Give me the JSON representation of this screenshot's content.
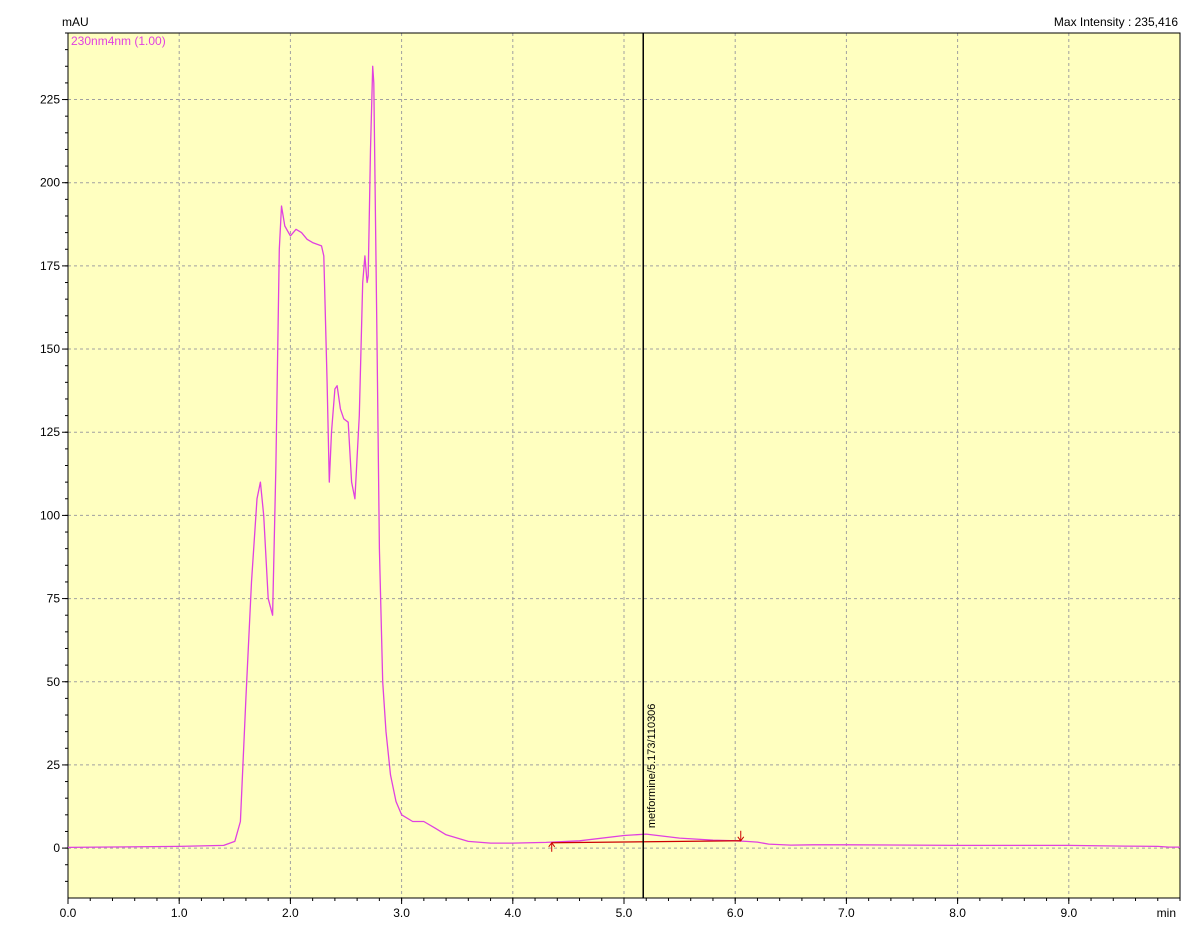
{
  "chart_data": {
    "type": "line",
    "ylabel": "mAU",
    "xlabel": "min",
    "max_intensity_label": "Max Intensity : 235,416",
    "xlim": [
      0,
      10
    ],
    "ylim": [
      -15,
      245
    ],
    "x_ticks": [
      "0.0",
      "1.0",
      "2.0",
      "3.0",
      "4.0",
      "5.0",
      "6.0",
      "7.0",
      "8.0",
      "9.0"
    ],
    "x_tick_values": [
      0,
      1,
      2,
      3,
      4,
      5,
      6,
      7,
      8,
      9
    ],
    "y_ticks": [
      "0",
      "25",
      "50",
      "75",
      "100",
      "125",
      "150",
      "175",
      "200",
      "225"
    ],
    "y_tick_values": [
      0,
      25,
      50,
      75,
      100,
      125,
      150,
      175,
      200,
      225
    ],
    "grid": true,
    "background_color": "#ffffc0",
    "series_color": "#e040e0",
    "marker_color": "#cc0000",
    "series": [
      {
        "name": "230nm4nm (1.00)",
        "x": [
          0.0,
          1.0,
          1.4,
          1.5,
          1.55,
          1.6,
          1.65,
          1.7,
          1.73,
          1.76,
          1.8,
          1.84,
          1.87,
          1.9,
          1.92,
          1.95,
          2.0,
          2.05,
          2.1,
          2.15,
          2.2,
          2.28,
          2.3,
          2.33,
          2.35,
          2.37,
          2.4,
          2.42,
          2.45,
          2.48,
          2.52,
          2.55,
          2.58,
          2.62,
          2.65,
          2.67,
          2.69,
          2.7,
          2.72,
          2.74,
          2.75,
          2.78,
          2.8,
          2.83,
          2.86,
          2.9,
          2.95,
          3.0,
          3.1,
          3.2,
          3.3,
          3.4,
          3.6,
          3.8,
          4.0,
          4.3,
          4.6,
          5.0,
          5.2,
          5.5,
          5.8,
          6.0,
          6.1,
          6.2,
          6.3,
          6.5,
          6.7,
          7.0,
          8.0,
          9.0,
          9.5,
          9.8,
          9.9,
          10.0
        ],
        "y": [
          0.2,
          0.5,
          0.8,
          2,
          8,
          45,
          80,
          105,
          110,
          100,
          75,
          70,
          115,
          180,
          193,
          187,
          184,
          186,
          185,
          183,
          182,
          181,
          178,
          140,
          110,
          125,
          138,
          139,
          132,
          129,
          128,
          110,
          105,
          130,
          170,
          178,
          170,
          172,
          210,
          235,
          230,
          150,
          90,
          50,
          35,
          22,
          14,
          10,
          8,
          8,
          6,
          4,
          2,
          1.5,
          1.5,
          1.7,
          2.2,
          3.8,
          4.2,
          3.0,
          2.4,
          2.2,
          2.0,
          1.8,
          1.2,
          0.9,
          1.0,
          1.0,
          0.8,
          0.8,
          0.6,
          0.5,
          0.3,
          0.3
        ]
      }
    ],
    "baseline": {
      "x": [
        4.35,
        6.05
      ],
      "y": [
        1.6,
        2.2
      ]
    },
    "integration_markers": [
      {
        "x": 4.35,
        "y": 1.6,
        "direction": "up"
      },
      {
        "x": 6.05,
        "y": 2.2,
        "direction": "down"
      }
    ],
    "cursor_x": 5.173,
    "peak_label": "metformine/5.173/110306"
  }
}
